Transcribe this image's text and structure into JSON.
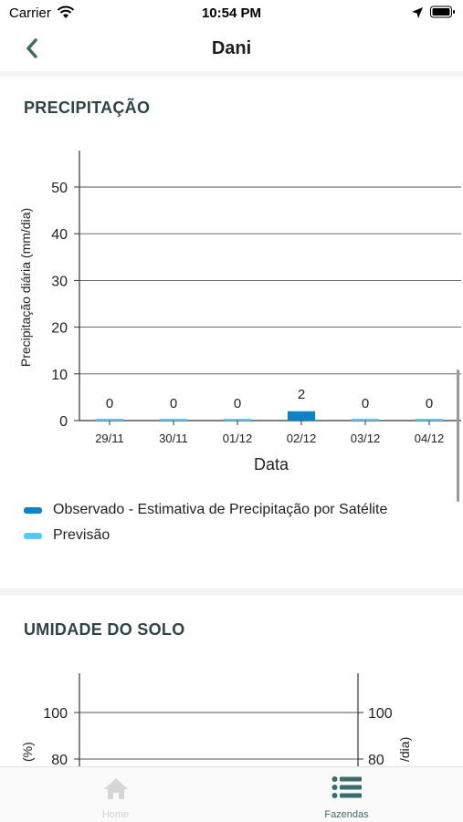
{
  "status_bar": {
    "carrier": "Carrier",
    "time": "10:54 PM"
  },
  "nav": {
    "title": "Dani"
  },
  "precipitation": {
    "section_title": "PRECIPITAÇÃO",
    "legend": [
      {
        "label": "Observado - Estimativa de Precipitação por Satélite",
        "color": "#0a84c6"
      },
      {
        "label": "Previsão",
        "color": "#5ac8fa"
      }
    ]
  },
  "soil": {
    "section_title": "UMIDADE DO SOLO"
  },
  "tabs": [
    {
      "label": "Home",
      "active": false
    },
    {
      "label": "Fazendas",
      "active": true
    }
  ],
  "chart_data": [
    {
      "type": "bar",
      "xlabel": "Data",
      "ylabel": "Precipitação diária (mm/dia)",
      "categories": [
        "29/11",
        "30/11",
        "01/12",
        "02/12",
        "03/12",
        "04/12"
      ],
      "series": [
        {
          "name": "Observado - Estimativa de Precipitação por Satélite",
          "values": [
            0,
            0,
            0,
            2,
            0,
            0
          ]
        },
        {
          "name": "Previsão",
          "values": [
            0,
            0,
            0,
            0,
            0,
            0
          ]
        }
      ],
      "data_labels": [
        "0",
        "0",
        "0",
        "2",
        "0",
        "0"
      ],
      "yticks": [
        0,
        10,
        20,
        30,
        40,
        50
      ],
      "ylim": [
        0,
        55
      ],
      "grid": true,
      "colors": {
        "observed": "#0a84c6",
        "forecast": "#5ac8fa"
      }
    },
    {
      "type": "line",
      "ylabel_left": "(%)",
      "ylabel_right": "/dia)",
      "yticks_left": [
        80,
        100
      ],
      "yticks_right": [
        80,
        100
      ],
      "grid": true
    }
  ]
}
